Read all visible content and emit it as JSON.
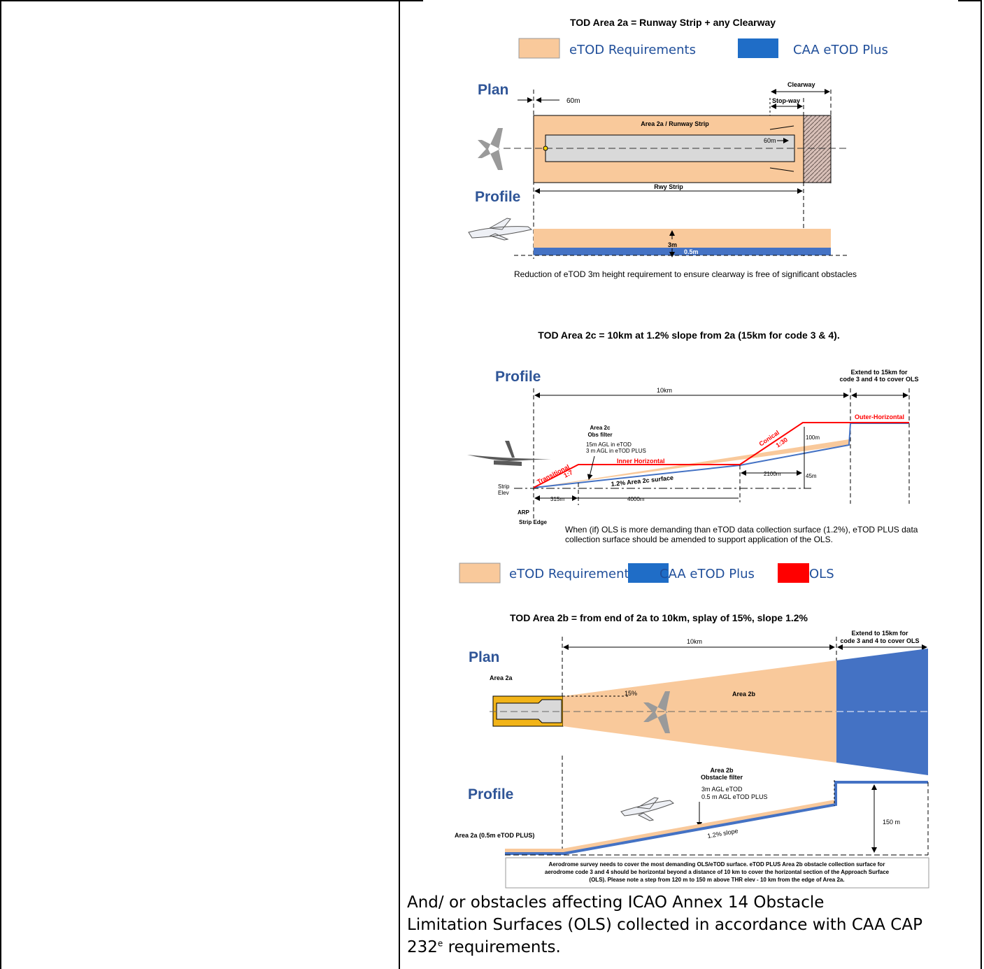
{
  "area2a": {
    "title": "TOD Area 2a = Runway Strip + any Clearway",
    "legend": [
      {
        "label": "eTOD Requirements",
        "color": "#F9C99B"
      },
      {
        "label": "CAA eTOD Plus",
        "color": "#1F6DC7"
      }
    ],
    "plan_label": "Plan",
    "profile_label": "Profile",
    "dim_60m": "60m",
    "clearway": "Clearway",
    "stopway": "Stop-way",
    "strip_label": "Area 2a / Runway Strip",
    "dim_60m_inner": "60m",
    "rwy_strip": "Rwy Strip",
    "dim_3m": "3m",
    "dim_05m": "0.5m",
    "caption": "Reduction of eTOD 3m height requirement to ensure clearway is free of significant obstacles"
  },
  "area2c": {
    "title": "TOD Area 2c = 10km at 1.2% slope from 2a (15km for code 3 & 4).",
    "profile_label": "Profile",
    "extend_note_1": "Extend to 15km for",
    "extend_note_2": "code 3 and 4 to cover OLS",
    "dim_10km": "10km",
    "obs_filter_1": "Area 2c",
    "obs_filter_2": "Obs filter",
    "obs_filter_3": "15m AGL in eTOD",
    "obs_filter_4": "3 m AGL in eTOD PLUS",
    "outer_horizontal": "Outer-Horizontal",
    "conical": "Conical",
    "conical_slope": "1:30",
    "dim_100m": "100m",
    "transitional": "Transitional",
    "transitional_slope": "1:7",
    "inner_horizontal": "Inner Horizontal",
    "surface_label": "1.2%  Area 2c surface",
    "dim_2100m": "2100m",
    "dim_45m": "45m",
    "strip_elev_1": "Strip",
    "strip_elev_2": "Elev",
    "dim_315m": "315m",
    "dim_4000m": "4000m",
    "arp": "ARP",
    "strip_edge": "Strip Edge",
    "caption_1": "When (if) OLS is more demanding than eTOD data collection surface (1.2%), eTOD PLUS data",
    "caption_2": "collection surface should be amended to support application of the OLS.",
    "legend": [
      {
        "label": "eTOD Requirements",
        "color": "#F9C99B"
      },
      {
        "label": "CAA eTOD Plus",
        "color": "#1F6DC7"
      },
      {
        "label": "OLS",
        "color": "#FF0000"
      }
    ]
  },
  "area2b": {
    "title": "TOD Area 2b = from end of 2a to 10km, splay of 15%, slope 1.2%",
    "extend_note_1": "Extend to 15km for",
    "extend_note_2": "code 3 and 4 to cover OLS",
    "dim_10km": "10km",
    "plan_label": "Plan",
    "area2a_label": "Area 2a",
    "splay": "15%",
    "area2b_label": "Area 2b",
    "filter_1": "Area 2b",
    "filter_2": "Obstacle filter",
    "filter_3": "3m AGL eTOD",
    "filter_4": "0.5 m AGL eTOD PLUS",
    "profile_label": "Profile",
    "area2a_profile": "Area 2a (0.5m eTOD PLUS)",
    "slope": "1.2% slope",
    "dim_150m": "150 m",
    "note_1": "Aerodrome survey needs to cover the most demanding  OLS/eTOD surface. eTOD PLUS Area 2b obstacle collection surface for",
    "note_2": "aerodrome code 3 and 4 should be horizontal beyond a distance of 10 km to cover the horizontal section of the Approach Surface",
    "note_3": "(OLS). Please note a step from 120 m to 150 m above THR elev - 10 km from the edge of Area 2a."
  },
  "footer": {
    "line1": "And/ or obstacles affecting ICAO Annex 14 Obstacle",
    "line2": "Limitation Surfaces (OLS) collected in accordance with CAA CAP",
    "line3a": "232",
    "sup": "e",
    "line3b": " requirements."
  }
}
